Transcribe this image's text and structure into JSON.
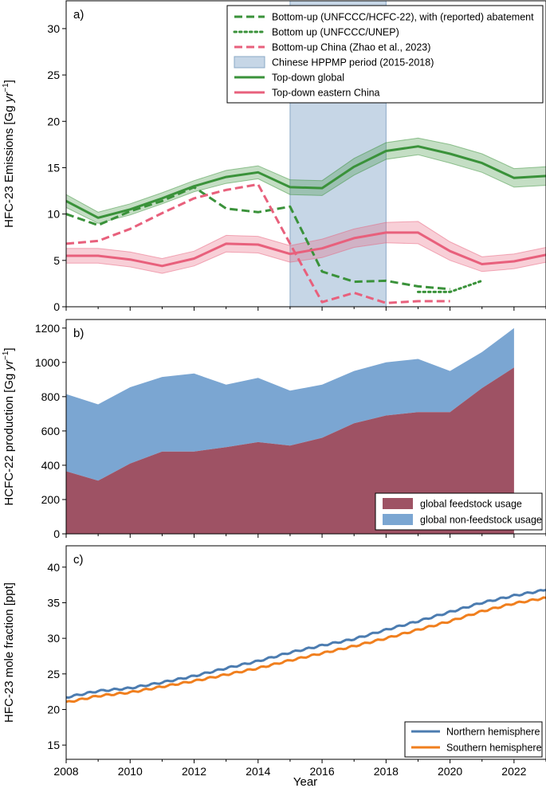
{
  "figure": {
    "xlabel": "Year"
  },
  "chart_data": [
    {
      "panel": "a)",
      "type": "line",
      "ylabel": "HFC-23 Emissions [Gg yr⁻¹]",
      "ylabel_main": "HFC-23 Emissions [Gg ",
      "ylabel_unit": "yr",
      "ylabel_sup": "−1",
      "ylabel_end": "]",
      "xlim": [
        2008,
        2023
      ],
      "ylim": [
        0,
        33
      ],
      "yticks": [
        0,
        5,
        10,
        15,
        20,
        25,
        30
      ],
      "xticks": [
        2008,
        2010,
        2012,
        2014,
        2016,
        2018,
        2020,
        2022
      ],
      "legend": "top-right",
      "colors": {
        "green": "#3a923a",
        "pink": "#e8607c",
        "band": "#c6d6e6"
      },
      "span": {
        "label": "Chinese HPPMP period (2015-2018)",
        "from": 2015,
        "to": 2018
      },
      "series": [
        {
          "name": "Bottom-up (UNFCCC/HCFC-22), with (reported) abatement",
          "style": "dashed",
          "color": "green",
          "x": [
            2008,
            2009,
            2010,
            2011,
            2012,
            2013,
            2014,
            2015,
            2016,
            2017,
            2018,
            2019,
            2020
          ],
          "values": [
            10.0,
            8.8,
            10.3,
            11.4,
            12.9,
            10.6,
            10.2,
            10.8,
            3.8,
            2.7,
            2.8,
            2.2,
            1.9
          ]
        },
        {
          "name": "Bottom up (UNFCCC/UNEP)",
          "style": "dotted",
          "color": "green",
          "x": [
            2019,
            2020,
            2021
          ],
          "values": [
            1.6,
            1.6,
            2.8
          ]
        },
        {
          "name": "Bottom-up China (Zhao et al., 2023)",
          "style": "dashed",
          "color": "pink",
          "x": [
            2008,
            2009,
            2010,
            2011,
            2012,
            2013,
            2014,
            2015,
            2016,
            2017,
            2018,
            2019,
            2020
          ],
          "values": [
            6.8,
            7.1,
            8.4,
            10.1,
            11.7,
            12.6,
            13.2,
            6.8,
            0.5,
            1.5,
            0.4,
            0.6,
            0.6
          ]
        },
        {
          "name": "Top-down global",
          "style": "solid",
          "color": "green",
          "x": [
            2008,
            2009,
            2010,
            2011,
            2012,
            2013,
            2014,
            2015,
            2016,
            2017,
            2018,
            2019,
            2020,
            2021,
            2022,
            2023
          ],
          "values": [
            11.4,
            9.6,
            10.5,
            11.7,
            13.0,
            14.0,
            14.5,
            12.9,
            12.8,
            15.1,
            16.8,
            17.3,
            16.5,
            15.5,
            13.9,
            14.1
          ],
          "band_half_width": [
            0.7,
            0.6,
            0.6,
            0.6,
            0.6,
            0.7,
            0.7,
            0.8,
            0.8,
            0.9,
            0.9,
            0.9,
            1.0,
            1.0,
            1.0,
            1.0
          ]
        },
        {
          "name": "Top-down eastern China",
          "style": "solid",
          "color": "pink",
          "x": [
            2008,
            2009,
            2010,
            2011,
            2012,
            2013,
            2014,
            2015,
            2016,
            2017,
            2018,
            2019,
            2020,
            2021,
            2022,
            2023
          ],
          "values": [
            5.5,
            5.5,
            5.1,
            4.4,
            5.2,
            6.8,
            6.7,
            5.7,
            6.3,
            7.4,
            8.0,
            8.0,
            6.0,
            4.6,
            4.9,
            5.6
          ],
          "band_half_width": [
            0.8,
            0.8,
            0.8,
            0.8,
            0.8,
            0.9,
            0.9,
            0.9,
            1.0,
            1.0,
            1.1,
            1.2,
            1.0,
            0.8,
            0.8,
            0.8
          ]
        }
      ],
      "legend_entries": [
        {
          "label": "Bottom-up (UNFCCC/HCFC-22), with (reported) abatement",
          "kind": "dashed",
          "color": "green"
        },
        {
          "label": "Bottom up (UNFCCC/UNEP)",
          "kind": "dotted",
          "color": "green"
        },
        {
          "label": "Bottom-up China (Zhao et al., 2023)",
          "kind": "dashed",
          "color": "pink"
        },
        {
          "label": "Chinese HPPMP period (2015-2018)",
          "kind": "patch",
          "color": "band"
        },
        {
          "label": "Top-down global",
          "kind": "solid",
          "color": "green"
        },
        {
          "label": "Top-down eastern China",
          "kind": "solid",
          "color": "pink"
        }
      ]
    },
    {
      "panel": "b)",
      "type": "area",
      "stacked": true,
      "ylabel": "HCFC-22 production [Gg yr⁻¹]",
      "ylabel_main": "HCFC-22 production [Gg ",
      "ylabel_unit": "yr",
      "ylabel_sup": "−1",
      "ylabel_end": "]",
      "xlim": [
        2008,
        2023
      ],
      "ylim": [
        0,
        1250
      ],
      "yticks": [
        0,
        200,
        400,
        600,
        800,
        1000,
        1200
      ],
      "xticks": [
        2008,
        2010,
        2012,
        2014,
        2016,
        2018,
        2020,
        2022
      ],
      "legend": "bottom-right",
      "x": [
        2008,
        2009,
        2010,
        2011,
        2012,
        2013,
        2014,
        2015,
        2016,
        2017,
        2018,
        2019,
        2020,
        2021,
        2022
      ],
      "series": [
        {
          "name": "global feedstock usage",
          "color": "#9e5264",
          "values": [
            365,
            310,
            410,
            480,
            480,
            505,
            535,
            515,
            560,
            645,
            690,
            710,
            710,
            850,
            970
          ]
        },
        {
          "name": "global non-feedstock usage",
          "color": "#7ba6d2",
          "values": [
            450,
            445,
            445,
            435,
            455,
            365,
            375,
            320,
            310,
            305,
            310,
            310,
            240,
            210,
            230
          ]
        }
      ]
    },
    {
      "panel": "c)",
      "type": "line",
      "ylabel": "HFC-23 mole fraction [ppt]",
      "xlim": [
        2008,
        2023
      ],
      "ylim": [
        13,
        43
      ],
      "yticks": [
        15,
        20,
        25,
        30,
        35,
        40
      ],
      "xticks": [
        2008,
        2010,
        2012,
        2014,
        2016,
        2018,
        2020,
        2022
      ],
      "legend": "bottom-right",
      "series": [
        {
          "name": "Northern hemisphere",
          "color": "#4c7cb0",
          "x": [
            2008,
            2009,
            2010,
            2011,
            2012,
            2013,
            2014,
            2015,
            2016,
            2017,
            2018,
            2019,
            2020,
            2021,
            2022,
            2023
          ],
          "values": [
            21.7,
            22.6,
            23.0,
            23.8,
            24.7,
            25.8,
            26.8,
            28.0,
            29.0,
            29.9,
            31.2,
            32.4,
            33.7,
            35.0,
            36.0,
            36.8
          ]
        },
        {
          "name": "Southern hemisphere",
          "color": "#f07f1e",
          "x": [
            2008,
            2009,
            2010,
            2011,
            2012,
            2013,
            2014,
            2015,
            2016,
            2017,
            2018,
            2019,
            2020,
            2021,
            2022,
            2023
          ],
          "values": [
            21.0,
            21.9,
            22.4,
            23.2,
            24.0,
            24.9,
            25.8,
            26.9,
            27.9,
            28.9,
            30.0,
            31.2,
            32.4,
            33.8,
            34.9,
            35.7
          ]
        }
      ]
    }
  ]
}
